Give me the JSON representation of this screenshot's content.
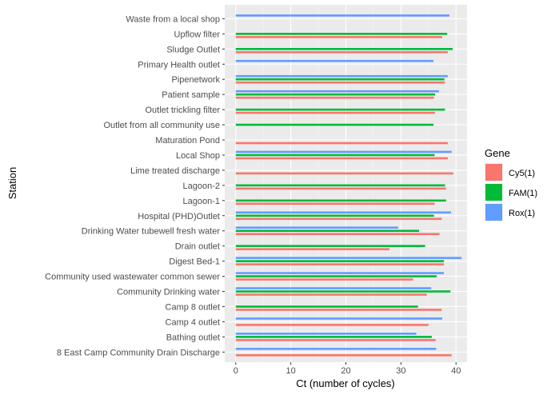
{
  "chart_data": {
    "type": "bar",
    "orientation": "horizontal",
    "xlabel": "Ct (number of cycles)",
    "ylabel": "Station",
    "xlim": [
      -2,
      42
    ],
    "xticks": [
      0,
      10,
      20,
      30,
      40
    ],
    "xtick_labels": [
      "0",
      "10",
      "20",
      "30",
      "40"
    ],
    "grid": true,
    "legend_position": "right",
    "legend_title": "Gene",
    "categories": [
      "8 East Camp Community Drain Discharge",
      "Bathing outlet",
      "Camp 4 outlet",
      "Camp 8 outlet",
      "Community Drinking water",
      "Community used wastewater common sewer",
      "Digest Bed-1",
      "Drain outlet",
      "Drinking Water tubewell fresh water",
      "Hospital (PHD)Outlet",
      "Lagoon-1",
      "Lagoon-2",
      "Lime treated discharge",
      "Local Shop",
      "Maturation Pond",
      "Outlet from all community use",
      "Outlet trickling filter",
      "Patient sample",
      "Pipenetwork",
      "Primary Health outlet",
      "Sludge Outlet",
      "Upflow filter",
      "Waste from a local shop"
    ],
    "series": [
      {
        "name": "Cy5(1)",
        "color": "#F8766D",
        "values": [
          39.2,
          36.3,
          35.0,
          37.4,
          34.7,
          32.2,
          37.8,
          27.9,
          37.0,
          37.4,
          36.1,
          38.2,
          39.5,
          38.5,
          38.5,
          null,
          36.2,
          36.0,
          38.0,
          null,
          38.5,
          37.5,
          null
        ]
      },
      {
        "name": "FAM(1)",
        "color": "#00BA38",
        "values": [
          null,
          35.6,
          null,
          33.1,
          39.0,
          36.5,
          37.8,
          34.4,
          33.3,
          36.0,
          38.2,
          38.0,
          null,
          36.1,
          null,
          35.9,
          38.0,
          36.2,
          37.9,
          null,
          39.4,
          38.4,
          null
        ]
      },
      {
        "name": "Rox(1)",
        "color": "#619CFF",
        "values": [
          36.4,
          32.8,
          37.5,
          null,
          35.5,
          37.8,
          41.0,
          null,
          29.5,
          39.1,
          null,
          null,
          null,
          39.2,
          null,
          null,
          null,
          36.9,
          38.5,
          35.9,
          null,
          null,
          38.8
        ]
      }
    ]
  }
}
